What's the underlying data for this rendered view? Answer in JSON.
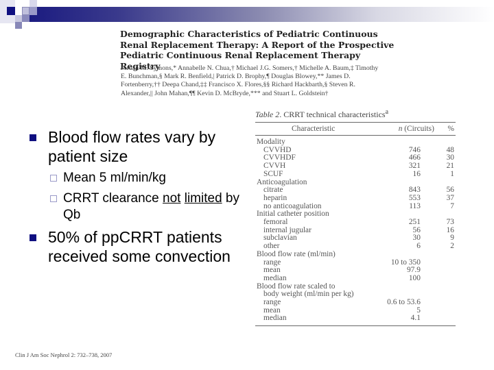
{
  "slide": {
    "accent_color": "#0f0f80",
    "paper": {
      "title": "Demographic Characteristics of Pediatric Continuous Renal Replacement Therapy: A Report of the Prospective Pediatric Continuous Renal Replacement Therapy Registry",
      "authors": "Jordan M. Symons,* Annabelle N. Chua,† Michael J.G. Somers,† Michelle A. Baum,‡ Timothy E. Bunchman,§ Mark R. Benfield,| Patrick D. Brophy,¶ Douglas Blowey,** James D. Fortenberry,†† Deepa Chand,‡‡ Francisco X. Flores,§§ Richard Hackbarth,§ Steven R. Alexander,|| John Mahan,¶¶ Kevin D. McBryde,*** and Stuart L. Goldstein†"
    },
    "bullets": [
      {
        "text": "Blood flow rates vary by patient size",
        "sub": [
          {
            "text": "Mean 5 ml/min/kg"
          },
          {
            "pre": "CRRT clearance ",
            "u1": "not",
            "mid": " ",
            "u2": "limited",
            "post": " by Qb"
          }
        ]
      },
      {
        "text": "50% of ppCRRT patients received some convection"
      }
    ],
    "citation": "Clin J Am Soc Nephrol 2: 732–738, 2007"
  },
  "table": {
    "caption_italic": "Table 2",
    "caption_rest": ". CRRT technical characteristics",
    "caption_sup": "a",
    "headers": [
      "Characteristic",
      "n (Circuits)",
      "%"
    ],
    "rows": [
      {
        "label": "Modality",
        "n": "",
        "pct": "",
        "indent": false
      },
      {
        "label": "CVVHD",
        "n": "746",
        "pct": "48",
        "indent": true
      },
      {
        "label": "CVVHDF",
        "n": "466",
        "pct": "30",
        "indent": true
      },
      {
        "label": "CVVH",
        "n": "321",
        "pct": "21",
        "indent": true
      },
      {
        "label": "SCUF",
        "n": "16",
        "pct": "1",
        "indent": true
      },
      {
        "label": "Anticoagulation",
        "n": "",
        "pct": "",
        "indent": false
      },
      {
        "label": "citrate",
        "n": "843",
        "pct": "56",
        "indent": true
      },
      {
        "label": "heparin",
        "n": "553",
        "pct": "37",
        "indent": true
      },
      {
        "label": "no anticoagulation",
        "n": "113",
        "pct": "7",
        "indent": true
      },
      {
        "label": "Initial catheter position",
        "n": "",
        "pct": "",
        "indent": false
      },
      {
        "label": "femoral",
        "n": "251",
        "pct": "73",
        "indent": true
      },
      {
        "label": "internal jugular",
        "n": "56",
        "pct": "16",
        "indent": true
      },
      {
        "label": "subclavian",
        "n": "30",
        "pct": "9",
        "indent": true
      },
      {
        "label": "other",
        "n": "6",
        "pct": "2",
        "indent": true
      },
      {
        "label": "Blood flow rate (ml/min)",
        "n": "",
        "pct": "",
        "indent": false
      },
      {
        "label": "range",
        "n": "10 to 350",
        "pct": "",
        "indent": true
      },
      {
        "label": "mean",
        "n": "97.9",
        "pct": "",
        "indent": true
      },
      {
        "label": "median",
        "n": "100",
        "pct": "",
        "indent": true
      },
      {
        "label": "Blood flow rate scaled to",
        "n": "",
        "pct": "",
        "indent": false
      },
      {
        "label": "body weight (ml/min per kg)",
        "n": "",
        "pct": "",
        "indent": true
      },
      {
        "label": "range",
        "n": "0.6 to 53.6",
        "pct": "",
        "indent": true
      },
      {
        "label": "mean",
        "n": "5",
        "pct": "",
        "indent": true
      },
      {
        "label": "median",
        "n": "4.1",
        "pct": "",
        "indent": true
      }
    ]
  }
}
